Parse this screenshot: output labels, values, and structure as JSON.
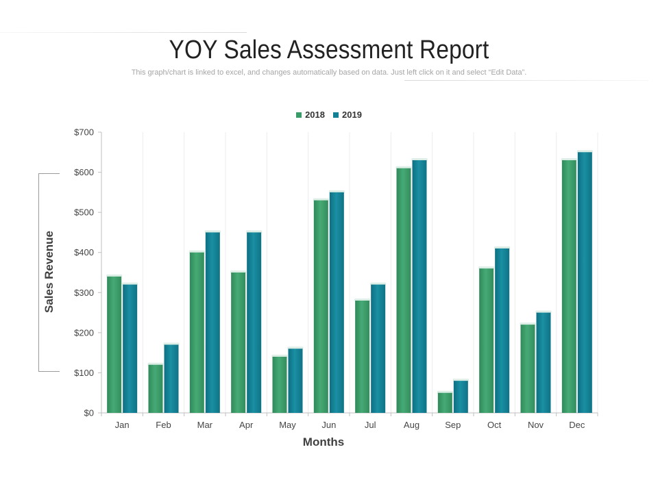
{
  "page": {
    "title": "YOY Sales Assessment Report",
    "subtitle": "This graph/chart is linked to excel, and changes automatically based on data. Just left click on it and select “Edit Data”."
  },
  "chart_data": {
    "type": "bar",
    "title": "",
    "xlabel": "Months",
    "ylabel": "Sales Revenue",
    "categories": [
      "Jan",
      "Feb",
      "Mar",
      "Apr",
      "May",
      "Jun",
      "Jul",
      "Aug",
      "Sep",
      "Oct",
      "Nov",
      "Dec"
    ],
    "series": [
      {
        "name": "2018",
        "color": "#3a9b68",
        "values": [
          340,
          120,
          400,
          350,
          140,
          530,
          280,
          610,
          50,
          360,
          220,
          630
        ]
      },
      {
        "name": "2019",
        "color": "#137f93",
        "values": [
          320,
          170,
          450,
          450,
          160,
          550,
          320,
          630,
          80,
          410,
          250,
          650
        ]
      }
    ],
    "ylim": [
      0,
      700
    ],
    "yticks": [
      0,
      100,
      200,
      300,
      400,
      500,
      600,
      700
    ],
    "ytick_labels": [
      "$0",
      "$100",
      "$200",
      "$300",
      "$400",
      "$500",
      "$600",
      "$700"
    ],
    "legend_position": "top-center",
    "grid": "vertical"
  }
}
